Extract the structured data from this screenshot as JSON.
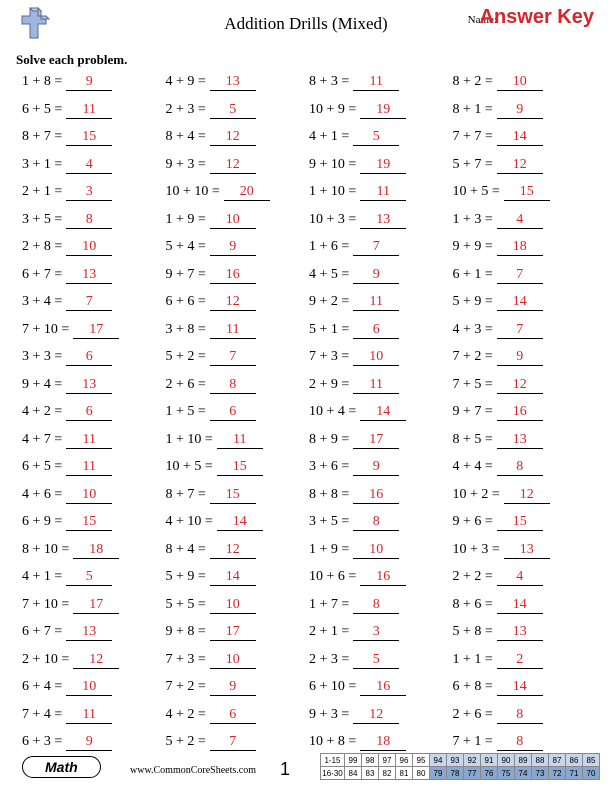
{
  "header": {
    "title": "Addition Drills (Mixed)",
    "name_label": "Name:",
    "answer_key": "Answer Key"
  },
  "instructions": "Solve each problem.",
  "logo": {
    "fill_main": "#9fb7de",
    "fill_alt": "#c6d0e6",
    "stroke": "#5a6a8a"
  },
  "style": {
    "answer_color": "#d8252c",
    "text_color": "#000000",
    "score_shade_top": "#c7d6ea",
    "score_shade_bot": "#8aa7cf"
  },
  "problems": [
    {
      "a": 1,
      "b": 8,
      "ans": 9
    },
    {
      "a": 6,
      "b": 5,
      "ans": 11
    },
    {
      "a": 8,
      "b": 7,
      "ans": 15
    },
    {
      "a": 3,
      "b": 1,
      "ans": 4
    },
    {
      "a": 2,
      "b": 1,
      "ans": 3
    },
    {
      "a": 3,
      "b": 5,
      "ans": 8
    },
    {
      "a": 2,
      "b": 8,
      "ans": 10
    },
    {
      "a": 6,
      "b": 7,
      "ans": 13
    },
    {
      "a": 3,
      "b": 4,
      "ans": 7
    },
    {
      "a": 7,
      "b": 10,
      "ans": 17
    },
    {
      "a": 3,
      "b": 3,
      "ans": 6
    },
    {
      "a": 9,
      "b": 4,
      "ans": 13
    },
    {
      "a": 4,
      "b": 2,
      "ans": 6
    },
    {
      "a": 4,
      "b": 7,
      "ans": 11
    },
    {
      "a": 6,
      "b": 5,
      "ans": 11
    },
    {
      "a": 4,
      "b": 6,
      "ans": 10
    },
    {
      "a": 6,
      "b": 9,
      "ans": 15
    },
    {
      "a": 8,
      "b": 10,
      "ans": 18
    },
    {
      "a": 4,
      "b": 1,
      "ans": 5
    },
    {
      "a": 7,
      "b": 10,
      "ans": 17
    },
    {
      "a": 6,
      "b": 7,
      "ans": 13
    },
    {
      "a": 2,
      "b": 10,
      "ans": 12
    },
    {
      "a": 6,
      "b": 4,
      "ans": 10
    },
    {
      "a": 7,
      "b": 4,
      "ans": 11
    },
    {
      "a": 6,
      "b": 3,
      "ans": 9
    },
    {
      "a": 4,
      "b": 9,
      "ans": 13
    },
    {
      "a": 2,
      "b": 3,
      "ans": 5
    },
    {
      "a": 8,
      "b": 4,
      "ans": 12
    },
    {
      "a": 9,
      "b": 3,
      "ans": 12
    },
    {
      "a": 10,
      "b": 10,
      "ans": 20
    },
    {
      "a": 1,
      "b": 9,
      "ans": 10
    },
    {
      "a": 5,
      "b": 4,
      "ans": 9
    },
    {
      "a": 9,
      "b": 7,
      "ans": 16
    },
    {
      "a": 6,
      "b": 6,
      "ans": 12
    },
    {
      "a": 3,
      "b": 8,
      "ans": 11
    },
    {
      "a": 5,
      "b": 2,
      "ans": 7
    },
    {
      "a": 2,
      "b": 6,
      "ans": 8
    },
    {
      "a": 1,
      "b": 5,
      "ans": 6
    },
    {
      "a": 1,
      "b": 10,
      "ans": 11
    },
    {
      "a": 10,
      "b": 5,
      "ans": 15
    },
    {
      "a": 8,
      "b": 7,
      "ans": 15
    },
    {
      "a": 4,
      "b": 10,
      "ans": 14
    },
    {
      "a": 8,
      "b": 4,
      "ans": 12
    },
    {
      "a": 5,
      "b": 9,
      "ans": 14
    },
    {
      "a": 5,
      "b": 5,
      "ans": 10
    },
    {
      "a": 9,
      "b": 8,
      "ans": 17
    },
    {
      "a": 7,
      "b": 3,
      "ans": 10
    },
    {
      "a": 7,
      "b": 2,
      "ans": 9
    },
    {
      "a": 4,
      "b": 2,
      "ans": 6
    },
    {
      "a": 5,
      "b": 2,
      "ans": 7
    },
    {
      "a": 8,
      "b": 3,
      "ans": 11
    },
    {
      "a": 10,
      "b": 9,
      "ans": 19
    },
    {
      "a": 4,
      "b": 1,
      "ans": 5
    },
    {
      "a": 9,
      "b": 10,
      "ans": 19
    },
    {
      "a": 1,
      "b": 10,
      "ans": 11
    },
    {
      "a": 10,
      "b": 3,
      "ans": 13
    },
    {
      "a": 1,
      "b": 6,
      "ans": 7
    },
    {
      "a": 4,
      "b": 5,
      "ans": 9
    },
    {
      "a": 9,
      "b": 2,
      "ans": 11
    },
    {
      "a": 5,
      "b": 1,
      "ans": 6
    },
    {
      "a": 7,
      "b": 3,
      "ans": 10
    },
    {
      "a": 2,
      "b": 9,
      "ans": 11
    },
    {
      "a": 10,
      "b": 4,
      "ans": 14
    },
    {
      "a": 8,
      "b": 9,
      "ans": 17
    },
    {
      "a": 3,
      "b": 6,
      "ans": 9
    },
    {
      "a": 8,
      "b": 8,
      "ans": 16
    },
    {
      "a": 3,
      "b": 5,
      "ans": 8
    },
    {
      "a": 1,
      "b": 9,
      "ans": 10
    },
    {
      "a": 10,
      "b": 6,
      "ans": 16
    },
    {
      "a": 1,
      "b": 7,
      "ans": 8
    },
    {
      "a": 2,
      "b": 1,
      "ans": 3
    },
    {
      "a": 2,
      "b": 3,
      "ans": 5
    },
    {
      "a": 6,
      "b": 10,
      "ans": 16
    },
    {
      "a": 9,
      "b": 3,
      "ans": 12
    },
    {
      "a": 10,
      "b": 8,
      "ans": 18
    },
    {
      "a": 8,
      "b": 2,
      "ans": 10
    },
    {
      "a": 8,
      "b": 1,
      "ans": 9
    },
    {
      "a": 7,
      "b": 7,
      "ans": 14
    },
    {
      "a": 5,
      "b": 7,
      "ans": 12
    },
    {
      "a": 10,
      "b": 5,
      "ans": 15
    },
    {
      "a": 1,
      "b": 3,
      "ans": 4
    },
    {
      "a": 9,
      "b": 9,
      "ans": 18
    },
    {
      "a": 6,
      "b": 1,
      "ans": 7
    },
    {
      "a": 5,
      "b": 9,
      "ans": 14
    },
    {
      "a": 4,
      "b": 3,
      "ans": 7
    },
    {
      "a": 7,
      "b": 2,
      "ans": 9
    },
    {
      "a": 7,
      "b": 5,
      "ans": 12
    },
    {
      "a": 9,
      "b": 7,
      "ans": 16
    },
    {
      "a": 8,
      "b": 5,
      "ans": 13
    },
    {
      "a": 4,
      "b": 4,
      "ans": 8
    },
    {
      "a": 10,
      "b": 2,
      "ans": 12
    },
    {
      "a": 9,
      "b": 6,
      "ans": 15
    },
    {
      "a": 10,
      "b": 3,
      "ans": 13
    },
    {
      "a": 2,
      "b": 2,
      "ans": 4
    },
    {
      "a": 8,
      "b": 6,
      "ans": 14
    },
    {
      "a": 5,
      "b": 8,
      "ans": 13
    },
    {
      "a": 1,
      "b": 1,
      "ans": 2
    },
    {
      "a": 6,
      "b": 8,
      "ans": 14
    },
    {
      "a": 2,
      "b": 6,
      "ans": 8
    },
    {
      "a": 7,
      "b": 1,
      "ans": 8
    }
  ],
  "footer": {
    "subject": "Math",
    "site": "www.CommonCoreSheets.com",
    "page": "1",
    "score": {
      "row1_label": "1-15",
      "row2_label": "16-30",
      "row1": [
        "99",
        "98",
        "97",
        "96",
        "95",
        "94",
        "93",
        "92",
        "91",
        "90",
        "89",
        "88",
        "87",
        "86",
        "85"
      ],
      "row2": [
        "84",
        "83",
        "82",
        "81",
        "80",
        "79",
        "78",
        "77",
        "76",
        "75",
        "74",
        "73",
        "72",
        "71",
        "70"
      ]
    }
  }
}
